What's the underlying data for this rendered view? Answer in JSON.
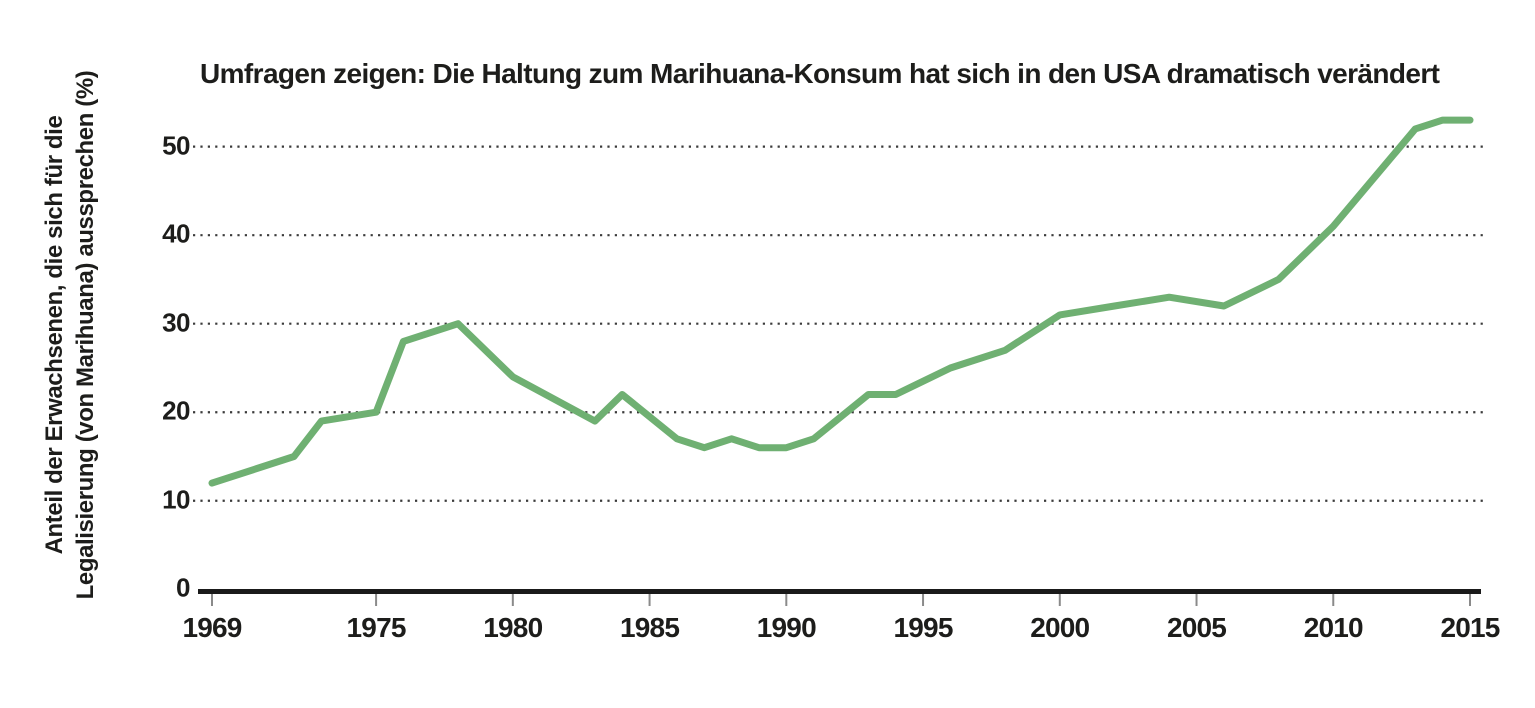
{
  "chart": {
    "title": "Umfragen zeigen: Die Haltung zum Marihuana-Konsum hat sich in den USA dramatisch verändert",
    "y_axis_label_line1": "Anteil der Erwachsenen, die sich für die",
    "y_axis_label_line2": "Legalisierung (von Marihuana) aussprechen (%)"
  },
  "chart_data": {
    "type": "line",
    "title": "Umfragen zeigen: Die Haltung zum Marihuana-Konsum hat sich in den USA dramatisch verändert",
    "xlabel": "",
    "ylabel": "Anteil der Erwachsenen, die sich für die Legalisierung (von Marihuana) aussprechen (%)",
    "x": [
      1969,
      1972,
      1973,
      1975,
      1976,
      1978,
      1980,
      1983,
      1984,
      1986,
      1987,
      1988,
      1989,
      1990,
      1991,
      1993,
      1994,
      1996,
      1998,
      2000,
      2002,
      2004,
      2006,
      2008,
      2010,
      2013,
      2014,
      2015
    ],
    "values": [
      12,
      15,
      19,
      20,
      28,
      30,
      24,
      19,
      22,
      17,
      16,
      17,
      16,
      16,
      17,
      22,
      22,
      25,
      27,
      31,
      32,
      33,
      32,
      35,
      41,
      52,
      53,
      53
    ],
    "x_ticks": [
      1969,
      1975,
      1980,
      1985,
      1990,
      1995,
      2000,
      2005,
      2010,
      2015
    ],
    "y_ticks": [
      0,
      10,
      20,
      30,
      40,
      50
    ],
    "xlim": [
      1969,
      2015
    ],
    "ylim": [
      0,
      55
    ],
    "grid": "horizontal-dotted",
    "legend": "none",
    "line_color": "#6fb072",
    "axis_color": "#1a1a1a",
    "grid_dot_color": "#3b3b3b",
    "tick_mark_color": "#8a8a8a",
    "background_color": "#ffffff"
  }
}
